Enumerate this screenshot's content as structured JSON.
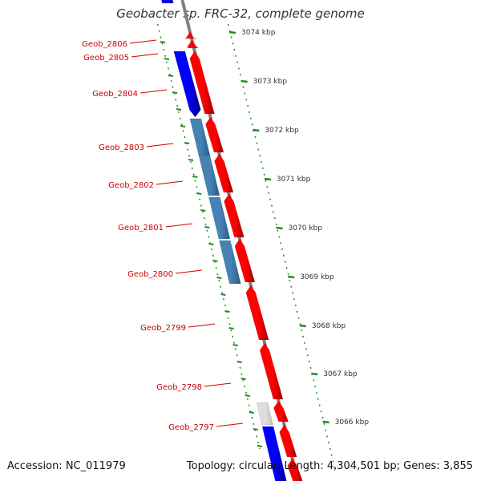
{
  "title": "Geobacter sp. FRC-32, complete genome",
  "footer": {
    "accession": "Accession: NC_011979",
    "topology": "Topology: circular; Length: 4,304,501 bp; Genes: 3,855"
  },
  "colors": {
    "forward_gene": "#ff0000",
    "reverse_gene": "#0000ff",
    "highlight_gene": "#4682b4",
    "rna_gene": "#c0c0c0",
    "label_text": "#cc0000",
    "tick": "#228b22",
    "backbone": "#808080"
  },
  "gene_labels": [
    "Geob_2806",
    "Geob_2805",
    "Geob_2804",
    "Geob_2803",
    "Geob_2802",
    "Geob_2801",
    "Geob_2800",
    "Geob_2799",
    "Geob_2798",
    "Geob_2797"
  ],
  "scale_labels": [
    "3074 kbp",
    "3073 kbp",
    "3072 kbp",
    "3071 kbp",
    "3070 kbp",
    "3069 kbp",
    "3068 kbp",
    "3067 kbp",
    "3066 kbp"
  ]
}
